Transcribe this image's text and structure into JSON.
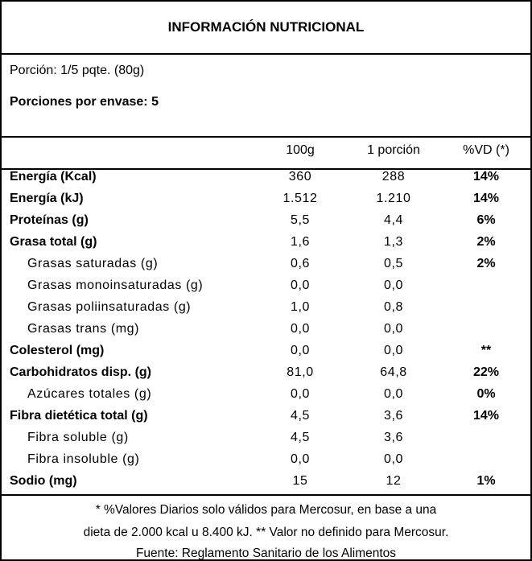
{
  "title": "INFORMACIÓN NUTRICIONAL",
  "portion": "Porción: 1/5 pqte. (80g)",
  "portions_per_package": "Porciones por envase: 5",
  "columns": [
    "100g",
    "1 porción",
    "%VD (*)"
  ],
  "rows": [
    {
      "label": "Energía (Kcal)",
      "v100": "360",
      "portion": "288",
      "vd": "14%"
    },
    {
      "label": "Energía (kJ)",
      "v100": "1.512",
      "portion": "1.210",
      "vd": "14%"
    },
    {
      "label": "Proteínas (g)",
      "v100": "5,5",
      "portion": "4,4",
      "vd": "6%"
    },
    {
      "label": "Grasa total (g)",
      "v100": "1,6",
      "portion": "1,3",
      "vd": "2%"
    },
    {
      "label": "Grasas saturadas (g)",
      "v100": "0,6",
      "portion": "0,5",
      "vd": "2%"
    },
    {
      "label": "Grasas monoinsaturadas (g)",
      "v100": "0,0",
      "portion": "0,0",
      "vd": ""
    },
    {
      "label": "Grasas poliinsaturadas (g)",
      "v100": "1,0",
      "portion": "0,8",
      "vd": ""
    },
    {
      "label": "Grasas trans (mg)",
      "v100": "0,0",
      "portion": "0,0",
      "vd": ""
    },
    {
      "label": "Colesterol (mg)",
      "v100": "0,0",
      "portion": "0,0",
      "vd": "**"
    },
    {
      "label": "Carbohidratos disp. (g)",
      "v100": "81,0",
      "portion": "64,8",
      "vd": "22%"
    },
    {
      "label": "Azúcares totales (g)",
      "v100": "0,0",
      "portion": "0,0",
      "vd": "0%"
    },
    {
      "label": "Fibra dietética total (g)",
      "v100": "4,5",
      "portion": "3,6",
      "vd": "14%"
    },
    {
      "label": "Fibra soluble (g)",
      "v100": "4,5",
      "portion": "3,6",
      "vd": ""
    },
    {
      "label": "Fibra insoluble (g)",
      "v100": "0,0",
      "portion": "0,0",
      "vd": ""
    },
    {
      "label": "Sodio (mg)",
      "v100": "15",
      "portion": "12",
      "vd": "1%"
    }
  ],
  "footer": {
    "line1": "* %Valores Diarios solo válidos para Mercosur, en base a una",
    "line2": "dieta de 2.000 kcal u 8.400 kJ. ** Valor no definido para Mercosur.",
    "line3": "Fuente: Reglamento Sanitario de los Alimentos"
  }
}
